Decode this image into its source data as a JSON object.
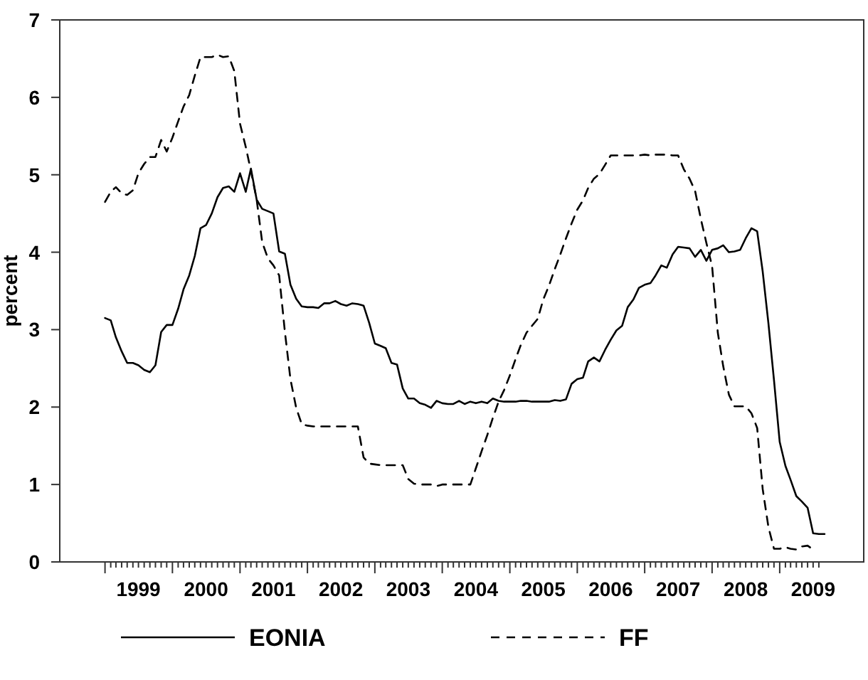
{
  "chart_data": {
    "type": "line",
    "ylabel": "percent",
    "x": [
      "1999-01",
      "1999-02",
      "1999-03",
      "1999-04",
      "1999-05",
      "1999-06",
      "1999-07",
      "1999-08",
      "1999-09",
      "1999-10",
      "1999-11",
      "1999-12",
      "2000-01",
      "2000-02",
      "2000-03",
      "2000-04",
      "2000-05",
      "2000-06",
      "2000-07",
      "2000-08",
      "2000-09",
      "2000-10",
      "2000-11",
      "2000-12",
      "2001-01",
      "2001-02",
      "2001-03",
      "2001-04",
      "2001-05",
      "2001-06",
      "2001-07",
      "2001-08",
      "2001-09",
      "2001-10",
      "2001-11",
      "2001-12",
      "2002-01",
      "2002-02",
      "2002-03",
      "2002-04",
      "2002-05",
      "2002-06",
      "2002-07",
      "2002-08",
      "2002-09",
      "2002-10",
      "2002-11",
      "2002-12",
      "2003-01",
      "2003-02",
      "2003-03",
      "2003-04",
      "2003-05",
      "2003-06",
      "2003-07",
      "2003-08",
      "2003-09",
      "2003-10",
      "2003-11",
      "2003-12",
      "2004-01",
      "2004-02",
      "2004-03",
      "2004-04",
      "2004-05",
      "2004-06",
      "2004-07",
      "2004-08",
      "2004-09",
      "2004-10",
      "2004-11",
      "2004-12",
      "2005-01",
      "2005-02",
      "2005-03",
      "2005-04",
      "2005-05",
      "2005-06",
      "2005-07",
      "2005-08",
      "2005-09",
      "2005-10",
      "2005-11",
      "2005-12",
      "2006-01",
      "2006-02",
      "2006-03",
      "2006-04",
      "2006-05",
      "2006-06",
      "2006-07",
      "2006-08",
      "2006-09",
      "2006-10",
      "2006-11",
      "2006-12",
      "2007-01",
      "2007-02",
      "2007-03",
      "2007-04",
      "2007-05",
      "2007-06",
      "2007-07",
      "2007-08",
      "2007-09",
      "2007-10",
      "2007-11",
      "2007-12",
      "2008-01",
      "2008-02",
      "2008-03",
      "2008-04",
      "2008-05",
      "2008-06",
      "2008-07",
      "2008-08",
      "2008-09",
      "2008-10",
      "2008-11",
      "2008-12",
      "2009-01",
      "2009-02",
      "2009-03",
      "2009-04",
      "2009-05",
      "2009-06",
      "2009-07",
      "2009-08",
      "2009-09"
    ],
    "series": [
      {
        "name": "EONIA",
        "color": "#000000",
        "line_style": "solid",
        "values": [
          3.15,
          3.12,
          2.9,
          2.72,
          2.57,
          2.57,
          2.54,
          2.48,
          2.45,
          2.54,
          2.97,
          3.06,
          3.06,
          3.27,
          3.52,
          3.7,
          3.95,
          4.31,
          4.35,
          4.5,
          4.71,
          4.83,
          4.85,
          4.78,
          5.02,
          4.78,
          5.08,
          4.68,
          4.56,
          4.53,
          4.5,
          4.01,
          3.98,
          3.58,
          3.4,
          3.3,
          3.29,
          3.29,
          3.28,
          3.34,
          3.34,
          3.37,
          3.33,
          3.31,
          3.34,
          3.33,
          3.31,
          3.09,
          2.82,
          2.79,
          2.76,
          2.57,
          2.55,
          2.24,
          2.11,
          2.11,
          2.05,
          2.03,
          1.99,
          2.08,
          2.05,
          2.04,
          2.04,
          2.08,
          2.04,
          2.07,
          2.05,
          2.07,
          2.05,
          2.11,
          2.08,
          2.07,
          2.07,
          2.07,
          2.08,
          2.08,
          2.07,
          2.07,
          2.07,
          2.07,
          2.09,
          2.08,
          2.1,
          2.3,
          2.36,
          2.38,
          2.59,
          2.64,
          2.59,
          2.74,
          2.87,
          2.99,
          3.05,
          3.29,
          3.39,
          3.54,
          3.58,
          3.6,
          3.7,
          3.83,
          3.8,
          3.97,
          4.07,
          4.06,
          4.05,
          3.94,
          4.03,
          3.89,
          4.03,
          4.05,
          4.09,
          4.0,
          4.01,
          4.03,
          4.18,
          4.31,
          4.27,
          3.75,
          3.08,
          2.35,
          1.55,
          1.24,
          1.06,
          0.85,
          0.78,
          0.7,
          0.37,
          0.36,
          0.36
        ]
      },
      {
        "name": "FF",
        "color": "#000000",
        "line_style": "dashed",
        "values": [
          4.65,
          4.78,
          4.84,
          4.76,
          4.74,
          4.8,
          5.02,
          5.14,
          5.23,
          5.23,
          5.45,
          5.3,
          5.48,
          5.69,
          5.88,
          6.03,
          6.28,
          6.52,
          6.52,
          6.52,
          6.55,
          6.52,
          6.53,
          6.34,
          5.66,
          5.36,
          5.05,
          4.68,
          4.13,
          3.92,
          3.83,
          3.7,
          2.97,
          2.36,
          1.99,
          1.78,
          1.76,
          1.75,
          1.75,
          1.75,
          1.75,
          1.75,
          1.75,
          1.75,
          1.75,
          1.75,
          1.35,
          1.27,
          1.26,
          1.25,
          1.25,
          1.25,
          1.25,
          1.25,
          1.07,
          1.01,
          1.0,
          1.0,
          1.0,
          0.98,
          1.0,
          1.0,
          1.0,
          1.0,
          1.0,
          1.0,
          1.21,
          1.43,
          1.64,
          1.86,
          2.07,
          2.22,
          2.41,
          2.62,
          2.8,
          2.96,
          3.05,
          3.14,
          3.39,
          3.57,
          3.78,
          3.97,
          4.18,
          4.37,
          4.55,
          4.67,
          4.83,
          4.95,
          5.01,
          5.13,
          5.25,
          5.25,
          5.25,
          5.25,
          5.25,
          5.25,
          5.26,
          5.25,
          5.26,
          5.26,
          5.26,
          5.25,
          5.25,
          5.07,
          4.95,
          4.79,
          4.43,
          4.12,
          3.82,
          2.96,
          2.53,
          2.16,
          2.01,
          2.01,
          2.01,
          1.92,
          1.73,
          0.94,
          0.45,
          0.17,
          0.17,
          0.19,
          0.17,
          0.16,
          0.2,
          0.21,
          0.16,
          null,
          null
        ]
      }
    ],
    "xlim": [
      "1998-05",
      "2010-04"
    ],
    "xticks": [
      {
        "value": "1999-01",
        "label": null
      },
      {
        "value": "1999-02",
        "label": null
      },
      {
        "value": "1999-03",
        "label": null
      },
      {
        "value": "1999-04",
        "label": null
      },
      {
        "value": "1999-05",
        "label": null
      },
      {
        "value": "1999-06",
        "label": null
      },
      {
        "value": "1999-07",
        "label": "1999"
      },
      {
        "value": "1999-08",
        "label": null
      },
      {
        "value": "1999-09",
        "label": null
      },
      {
        "value": "1999-10",
        "label": null
      },
      {
        "value": "1999-11",
        "label": null
      },
      {
        "value": "1999-12",
        "label": null
      },
      {
        "value": "2000-01",
        "label": null
      },
      {
        "value": "2000-02",
        "label": null
      },
      {
        "value": "2000-03",
        "label": null
      },
      {
        "value": "2000-04",
        "label": null
      },
      {
        "value": "2000-05",
        "label": null
      },
      {
        "value": "2000-06",
        "label": null
      },
      {
        "value": "2000-07",
        "label": "2000"
      },
      {
        "value": "2000-08",
        "label": null
      },
      {
        "value": "2000-09",
        "label": null
      },
      {
        "value": "2000-10",
        "label": null
      },
      {
        "value": "2000-11",
        "label": null
      },
      {
        "value": "2000-12",
        "label": null
      },
      {
        "value": "2001-01",
        "label": null
      },
      {
        "value": "2001-02",
        "label": null
      },
      {
        "value": "2001-03",
        "label": null
      },
      {
        "value": "2001-04",
        "label": null
      },
      {
        "value": "2001-05",
        "label": null
      },
      {
        "value": "2001-06",
        "label": null
      },
      {
        "value": "2001-07",
        "label": "2001"
      },
      {
        "value": "2001-08",
        "label": null
      },
      {
        "value": "2001-09",
        "label": null
      },
      {
        "value": "2001-10",
        "label": null
      },
      {
        "value": "2001-11",
        "label": null
      },
      {
        "value": "2001-12",
        "label": null
      },
      {
        "value": "2002-01",
        "label": null
      },
      {
        "value": "2002-02",
        "label": null
      },
      {
        "value": "2002-03",
        "label": null
      },
      {
        "value": "2002-04",
        "label": null
      },
      {
        "value": "2002-05",
        "label": null
      },
      {
        "value": "2002-06",
        "label": null
      },
      {
        "value": "2002-07",
        "label": "2002"
      },
      {
        "value": "2002-08",
        "label": null
      },
      {
        "value": "2002-09",
        "label": null
      },
      {
        "value": "2002-10",
        "label": null
      },
      {
        "value": "2002-11",
        "label": null
      },
      {
        "value": "2002-12",
        "label": null
      },
      {
        "value": "2003-01",
        "label": null
      },
      {
        "value": "2003-02",
        "label": null
      },
      {
        "value": "2003-03",
        "label": null
      },
      {
        "value": "2003-04",
        "label": null
      },
      {
        "value": "2003-05",
        "label": null
      },
      {
        "value": "2003-06",
        "label": null
      },
      {
        "value": "2003-07",
        "label": "2003"
      },
      {
        "value": "2003-08",
        "label": null
      },
      {
        "value": "2003-09",
        "label": null
      },
      {
        "value": "2003-10",
        "label": null
      },
      {
        "value": "2003-11",
        "label": null
      },
      {
        "value": "2003-12",
        "label": null
      },
      {
        "value": "2004-01",
        "label": null
      },
      {
        "value": "2004-02",
        "label": null
      },
      {
        "value": "2004-03",
        "label": null
      },
      {
        "value": "2004-04",
        "label": null
      },
      {
        "value": "2004-05",
        "label": null
      },
      {
        "value": "2004-06",
        "label": null
      },
      {
        "value": "2004-07",
        "label": "2004"
      },
      {
        "value": "2004-08",
        "label": null
      },
      {
        "value": "2004-09",
        "label": null
      },
      {
        "value": "2004-10",
        "label": null
      },
      {
        "value": "2004-11",
        "label": null
      },
      {
        "value": "2004-12",
        "label": null
      },
      {
        "value": "2005-01",
        "label": null
      },
      {
        "value": "2005-02",
        "label": null
      },
      {
        "value": "2005-03",
        "label": null
      },
      {
        "value": "2005-04",
        "label": null
      },
      {
        "value": "2005-05",
        "label": null
      },
      {
        "value": "2005-06",
        "label": null
      },
      {
        "value": "2005-07",
        "label": "2005"
      },
      {
        "value": "2005-08",
        "label": null
      },
      {
        "value": "2005-09",
        "label": null
      },
      {
        "value": "2005-10",
        "label": null
      },
      {
        "value": "2005-11",
        "label": null
      },
      {
        "value": "2005-12",
        "label": null
      },
      {
        "value": "2006-01",
        "label": null
      },
      {
        "value": "2006-02",
        "label": null
      },
      {
        "value": "2006-03",
        "label": null
      },
      {
        "value": "2006-04",
        "label": null
      },
      {
        "value": "2006-05",
        "label": null
      },
      {
        "value": "2006-06",
        "label": null
      },
      {
        "value": "2006-07",
        "label": "2006"
      },
      {
        "value": "2006-08",
        "label": null
      },
      {
        "value": "2006-09",
        "label": null
      },
      {
        "value": "2006-10",
        "label": null
      },
      {
        "value": "2006-11",
        "label": null
      },
      {
        "value": "2006-12",
        "label": null
      },
      {
        "value": "2007-01",
        "label": null
      },
      {
        "value": "2007-02",
        "label": null
      },
      {
        "value": "2007-03",
        "label": null
      },
      {
        "value": "2007-04",
        "label": null
      },
      {
        "value": "2007-05",
        "label": null
      },
      {
        "value": "2007-06",
        "label": null
      },
      {
        "value": "2007-07",
        "label": "2007"
      },
      {
        "value": "2007-08",
        "label": null
      },
      {
        "value": "2007-09",
        "label": null
      },
      {
        "value": "2007-10",
        "label": null
      },
      {
        "value": "2007-11",
        "label": null
      },
      {
        "value": "2007-12",
        "label": null
      },
      {
        "value": "2008-01",
        "label": null
      },
      {
        "value": "2008-02",
        "label": null
      },
      {
        "value": "2008-03",
        "label": null
      },
      {
        "value": "2008-04",
        "label": null
      },
      {
        "value": "2008-05",
        "label": null
      },
      {
        "value": "2008-06",
        "label": null
      },
      {
        "value": "2008-07",
        "label": "2008"
      },
      {
        "value": "2008-08",
        "label": null
      },
      {
        "value": "2008-09",
        "label": null
      },
      {
        "value": "2008-10",
        "label": null
      },
      {
        "value": "2008-11",
        "label": null
      },
      {
        "value": "2008-12",
        "label": null
      },
      {
        "value": "2009-01",
        "label": null
      },
      {
        "value": "2009-02",
        "label": null
      },
      {
        "value": "2009-03",
        "label": null
      },
      {
        "value": "2009-04",
        "label": null
      },
      {
        "value": "2009-05",
        "label": null
      },
      {
        "value": "2009-06",
        "label": null
      },
      {
        "value": "2009-07",
        "label": "2009"
      },
      {
        "value": "2009-08",
        "label": null
      }
    ],
    "ylim": [
      0,
      7
    ],
    "yticks": [
      0,
      1,
      2,
      3,
      4,
      5,
      6,
      7
    ],
    "grid": false,
    "legend": "bottom",
    "marker": "none"
  }
}
